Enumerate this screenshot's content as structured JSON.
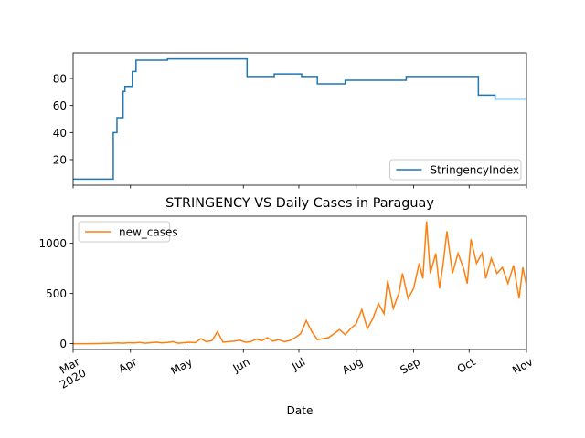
{
  "chart_data": [
    {
      "type": "line",
      "series": [
        {
          "name": "StringencyIndex",
          "color": "#1f77b4",
          "x": [
            0,
            21.7,
            21.7,
            23.7,
            23.7,
            27,
            27,
            28,
            28,
            32,
            32,
            34,
            34,
            51,
            51,
            94,
            94,
            108.7,
            108.7,
            123.5,
            123.5,
            132,
            132,
            147,
            147,
            180,
            180,
            219,
            219,
            228,
            228,
            245
          ],
          "values": [
            5.56,
            5.56,
            40,
            40,
            51,
            51,
            70.37,
            70.37,
            74.07,
            74.07,
            85.19,
            85.19,
            93.52,
            93.52,
            94.44,
            94.44,
            81.48,
            81.48,
            83.33,
            83.33,
            81.48,
            81.48,
            75.93,
            75.93,
            78.7,
            78.7,
            81.48,
            81.48,
            67.59,
            67.59,
            64.81,
            64.81
          ]
        }
      ],
      "xlim": [
        0,
        245
      ],
      "ylim": [
        1.11,
        98.89
      ],
      "yticks": [
        20,
        40,
        60,
        80
      ],
      "legend": "lower right"
    },
    {
      "type": "line",
      "title": "STRINGENCY VS Daily Cases in Paraguay",
      "xlabel": "Date",
      "series": [
        {
          "name": "new_cases",
          "color": "#ff7f0e",
          "x": [
            0,
            3,
            6,
            9,
            12,
            15,
            18,
            21,
            24,
            27,
            30,
            33,
            36,
            39,
            42,
            45,
            48,
            51,
            54,
            57,
            60,
            63,
            66,
            69,
            72,
            75,
            78,
            81,
            84,
            87,
            90,
            93,
            96,
            99,
            102,
            105,
            108,
            111,
            114,
            117,
            120,
            123,
            126,
            129,
            132,
            135,
            138,
            141,
            144,
            147,
            150,
            153,
            156,
            159,
            162,
            165,
            168,
            170,
            173,
            176,
            178,
            181,
            184,
            187,
            189,
            191,
            193,
            196,
            198,
            200,
            202,
            205,
            208,
            211,
            213,
            215,
            218,
            221,
            223,
            226,
            229,
            232,
            235,
            238,
            241,
            243,
            245
          ],
          "values": [
            0,
            0,
            0,
            0,
            1,
            2,
            3,
            5,
            8,
            5,
            10,
            8,
            12,
            5,
            10,
            15,
            8,
            12,
            20,
            5,
            10,
            15,
            10,
            50,
            20,
            30,
            120,
            15,
            20,
            25,
            35,
            15,
            20,
            45,
            30,
            60,
            25,
            40,
            20,
            30,
            60,
            100,
            230,
            120,
            40,
            50,
            60,
            100,
            140,
            90,
            150,
            200,
            340,
            150,
            250,
            400,
            300,
            630,
            350,
            500,
            700,
            450,
            550,
            800,
            650,
            1220,
            700,
            900,
            550,
            800,
            1120,
            700,
            900,
            750,
            600,
            1040,
            800,
            900,
            650,
            850,
            700,
            760,
            600,
            780,
            450,
            760,
            580
          ]
        }
      ],
      "xlim": [
        0,
        245
      ],
      "xticks": [
        {
          "value": 0,
          "label": "Mar\n2020"
        },
        {
          "value": 31,
          "label": "Apr"
        },
        {
          "value": 61,
          "label": "May"
        },
        {
          "value": 92,
          "label": "Jun"
        },
        {
          "value": 122,
          "label": "Jul"
        },
        {
          "value": 153,
          "label": "Aug"
        },
        {
          "value": 184,
          "label": "Sep"
        },
        {
          "value": 214,
          "label": "Oct"
        },
        {
          "value": 245,
          "label": "Nov"
        }
      ],
      "ylim": [
        -58,
        1270
      ],
      "yticks": [
        0,
        500,
        1000
      ],
      "legend": "upper left"
    }
  ]
}
